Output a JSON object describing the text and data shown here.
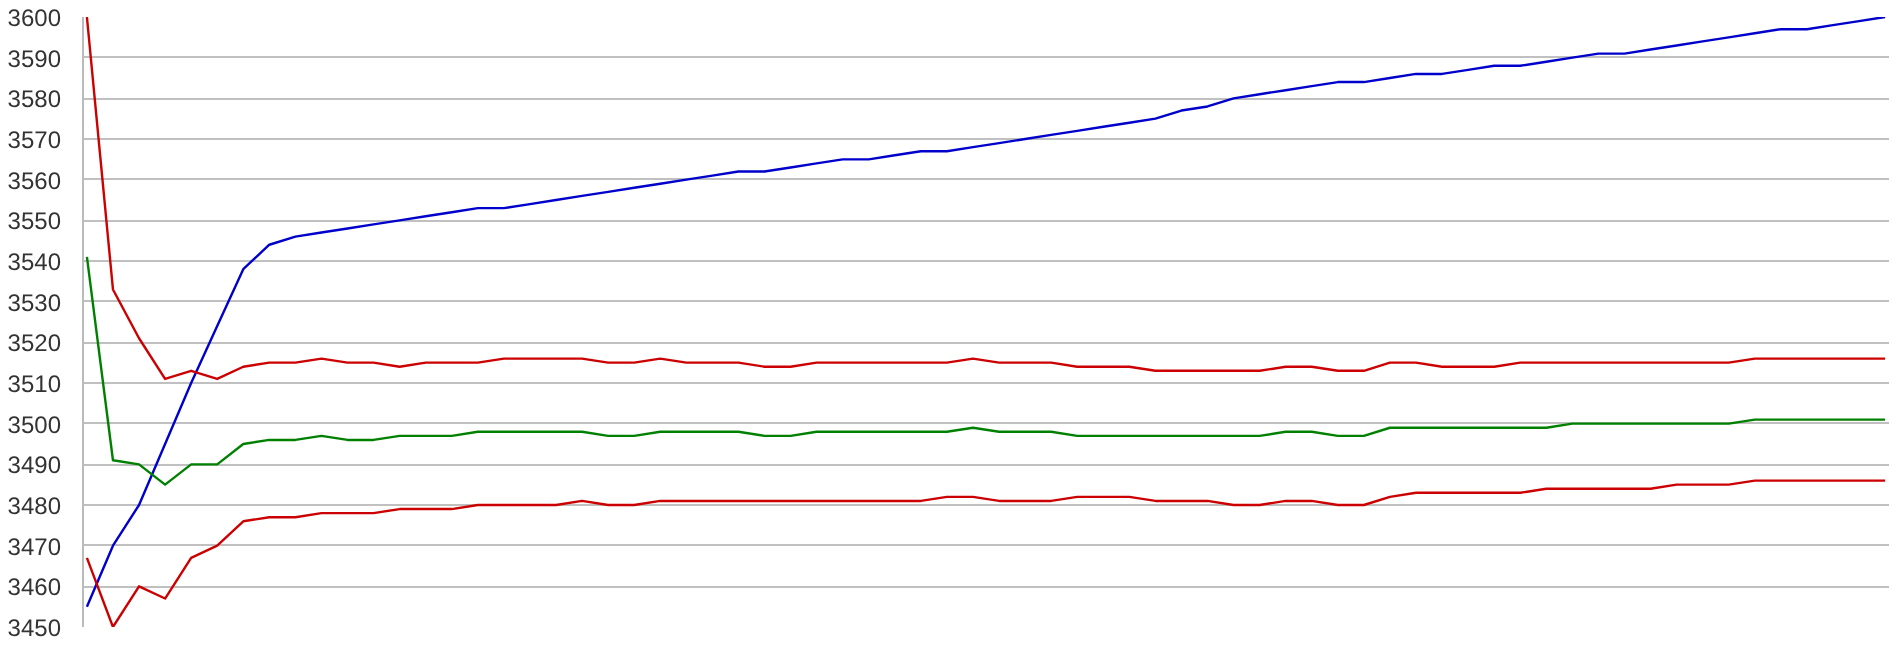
{
  "chart_data": {
    "type": "line",
    "categories": [
      null,
      null,
      null,
      null,
      null,
      null,
      null,
      null,
      null,
      null,
      null,
      null,
      null,
      null,
      null,
      null,
      null,
      null,
      null,
      null,
      null,
      null,
      null,
      null,
      null,
      null,
      null,
      null,
      null,
      null,
      null,
      null,
      null,
      null,
      null,
      null,
      null,
      null,
      null,
      null,
      null,
      null,
      null,
      null,
      null,
      null,
      null,
      null,
      null,
      null,
      null,
      null,
      null,
      null,
      null,
      null,
      null,
      null,
      null,
      null,
      null,
      null,
      null,
      null,
      null,
      null,
      null,
      null,
      null,
      null
    ],
    "ylim": [
      3450,
      3600
    ],
    "yticks": [
      3450,
      3460,
      3470,
      3480,
      3490,
      3500,
      3510,
      3520,
      3530,
      3540,
      3550,
      3560,
      3570,
      3580,
      3590,
      3600
    ],
    "grid": "y",
    "tick_labels": "y",
    "series": [
      {
        "color": "#0000cc",
        "values": [
          3455,
          3470,
          3480,
          3495,
          3510,
          3524,
          3538,
          3544,
          3546,
          3547,
          3548,
          3549,
          3550,
          3551,
          3552,
          3553,
          3553,
          3554,
          3555,
          3556,
          3557,
          3558,
          3559,
          3560,
          3561,
          3562,
          3562,
          3563,
          3564,
          3565,
          3565,
          3566,
          3567,
          3567,
          3568,
          3569,
          3570,
          3571,
          3572,
          3573,
          3574,
          3575,
          3577,
          3578,
          3580,
          3581,
          3582,
          3583,
          3584,
          3584,
          3585,
          3586,
          3586,
          3587,
          3588,
          3588,
          3589,
          3590,
          3591,
          3591,
          3592,
          3593,
          3594,
          3595,
          3596,
          3597,
          3597,
          3598,
          3599,
          3600
        ]
      },
      {
        "color": "#cc0000",
        "values": [
          3600,
          3533,
          3521,
          3511,
          3513,
          3511,
          3514,
          3515,
          3515,
          3516,
          3515,
          3515,
          3514,
          3515,
          3515,
          3515,
          3516,
          3516,
          3516,
          3516,
          3515,
          3515,
          3516,
          3515,
          3515,
          3515,
          3514,
          3514,
          3515,
          3515,
          3515,
          3515,
          3515,
          3515,
          3516,
          3515,
          3515,
          3515,
          3514,
          3514,
          3514,
          3513,
          3513,
          3513,
          3513,
          3513,
          3514,
          3514,
          3513,
          3513,
          3515,
          3515,
          3514,
          3514,
          3514,
          3515,
          3515,
          3515,
          3515,
          3515,
          3515,
          3515,
          3515,
          3515,
          3516,
          3516,
          3516,
          3516,
          3516,
          3516
        ]
      },
      {
        "color": "#008000",
        "values": [
          3541,
          3491,
          3490,
          3485,
          3490,
          3490,
          3495,
          3496,
          3496,
          3497,
          3496,
          3496,
          3497,
          3497,
          3497,
          3498,
          3498,
          3498,
          3498,
          3498,
          3497,
          3497,
          3498,
          3498,
          3498,
          3498,
          3497,
          3497,
          3498,
          3498,
          3498,
          3498,
          3498,
          3498,
          3499,
          3498,
          3498,
          3498,
          3497,
          3497,
          3497,
          3497,
          3497,
          3497,
          3497,
          3497,
          3498,
          3498,
          3497,
          3497,
          3499,
          3499,
          3499,
          3499,
          3499,
          3499,
          3499,
          3500,
          3500,
          3500,
          3500,
          3500,
          3500,
          3500,
          3501,
          3501,
          3501,
          3501,
          3501,
          3501
        ]
      },
      {
        "color": "#cc0000",
        "values": [
          3467,
          3450,
          3460,
          3457,
          3467,
          3470,
          3476,
          3477,
          3477,
          3478,
          3478,
          3478,
          3479,
          3479,
          3479,
          3480,
          3480,
          3480,
          3480,
          3481,
          3480,
          3480,
          3481,
          3481,
          3481,
          3481,
          3481,
          3481,
          3481,
          3481,
          3481,
          3481,
          3481,
          3482,
          3482,
          3481,
          3481,
          3481,
          3482,
          3482,
          3482,
          3481,
          3481,
          3481,
          3480,
          3480,
          3481,
          3481,
          3480,
          3480,
          3482,
          3483,
          3483,
          3483,
          3483,
          3483,
          3484,
          3484,
          3484,
          3484,
          3484,
          3485,
          3485,
          3485,
          3486,
          3486,
          3486,
          3486,
          3486,
          3486
        ]
      }
    ]
  }
}
